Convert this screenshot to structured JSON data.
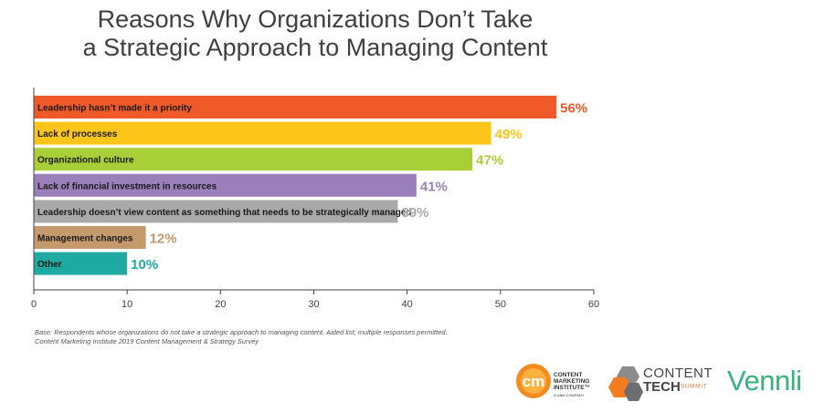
{
  "title_lines": [
    "Reasons Why Organizations Don’t Take",
    "a Strategic Approach to Managing Content"
  ],
  "chart_data": {
    "type": "bar",
    "orientation": "horizontal",
    "categories": [
      "Leadership hasn’t made it a priority",
      "Lack of processes",
      "Organizational culture",
      "Lack of financial investment in resources",
      "Leadership doesn’t view content as something that needs to be strategically managed",
      "Management changes",
      "Other"
    ],
    "values": [
      56,
      49,
      47,
      41,
      39,
      12,
      10
    ],
    "value_labels": [
      "56%",
      "49%",
      "47%",
      "41%",
      "39%",
      "12%",
      "10%"
    ],
    "colors": [
      "#f05a28",
      "#fdc51a",
      "#a9cf38",
      "#9b7fbb",
      "#a9a9a9",
      "#c49a6c",
      "#1eaaa0"
    ],
    "xlim": [
      0,
      60
    ],
    "xticks": [
      0,
      10,
      20,
      30,
      40,
      50,
      60
    ],
    "xlabel": "",
    "ylabel": "",
    "grid": false,
    "legend": "none"
  },
  "footnote": [
    "Base: Respondents whose organizations do not take a strategic approach to managing content. Aided list; multiple responses permitted.",
    "Content Marketing Institute 2019 Content Management & Strategy Survey"
  ],
  "logos": {
    "cmi_mark": "cm",
    "cmi_lines": [
      "CONTENT",
      "MARKETING",
      "INSTITUTE™"
    ],
    "cmi_sub": "A UBM COMPANY",
    "ct_line1": "CONTENT",
    "ct_line2": "TECH",
    "ct_line2_suffix": "SUMMIT",
    "vennli": "Vennli"
  }
}
